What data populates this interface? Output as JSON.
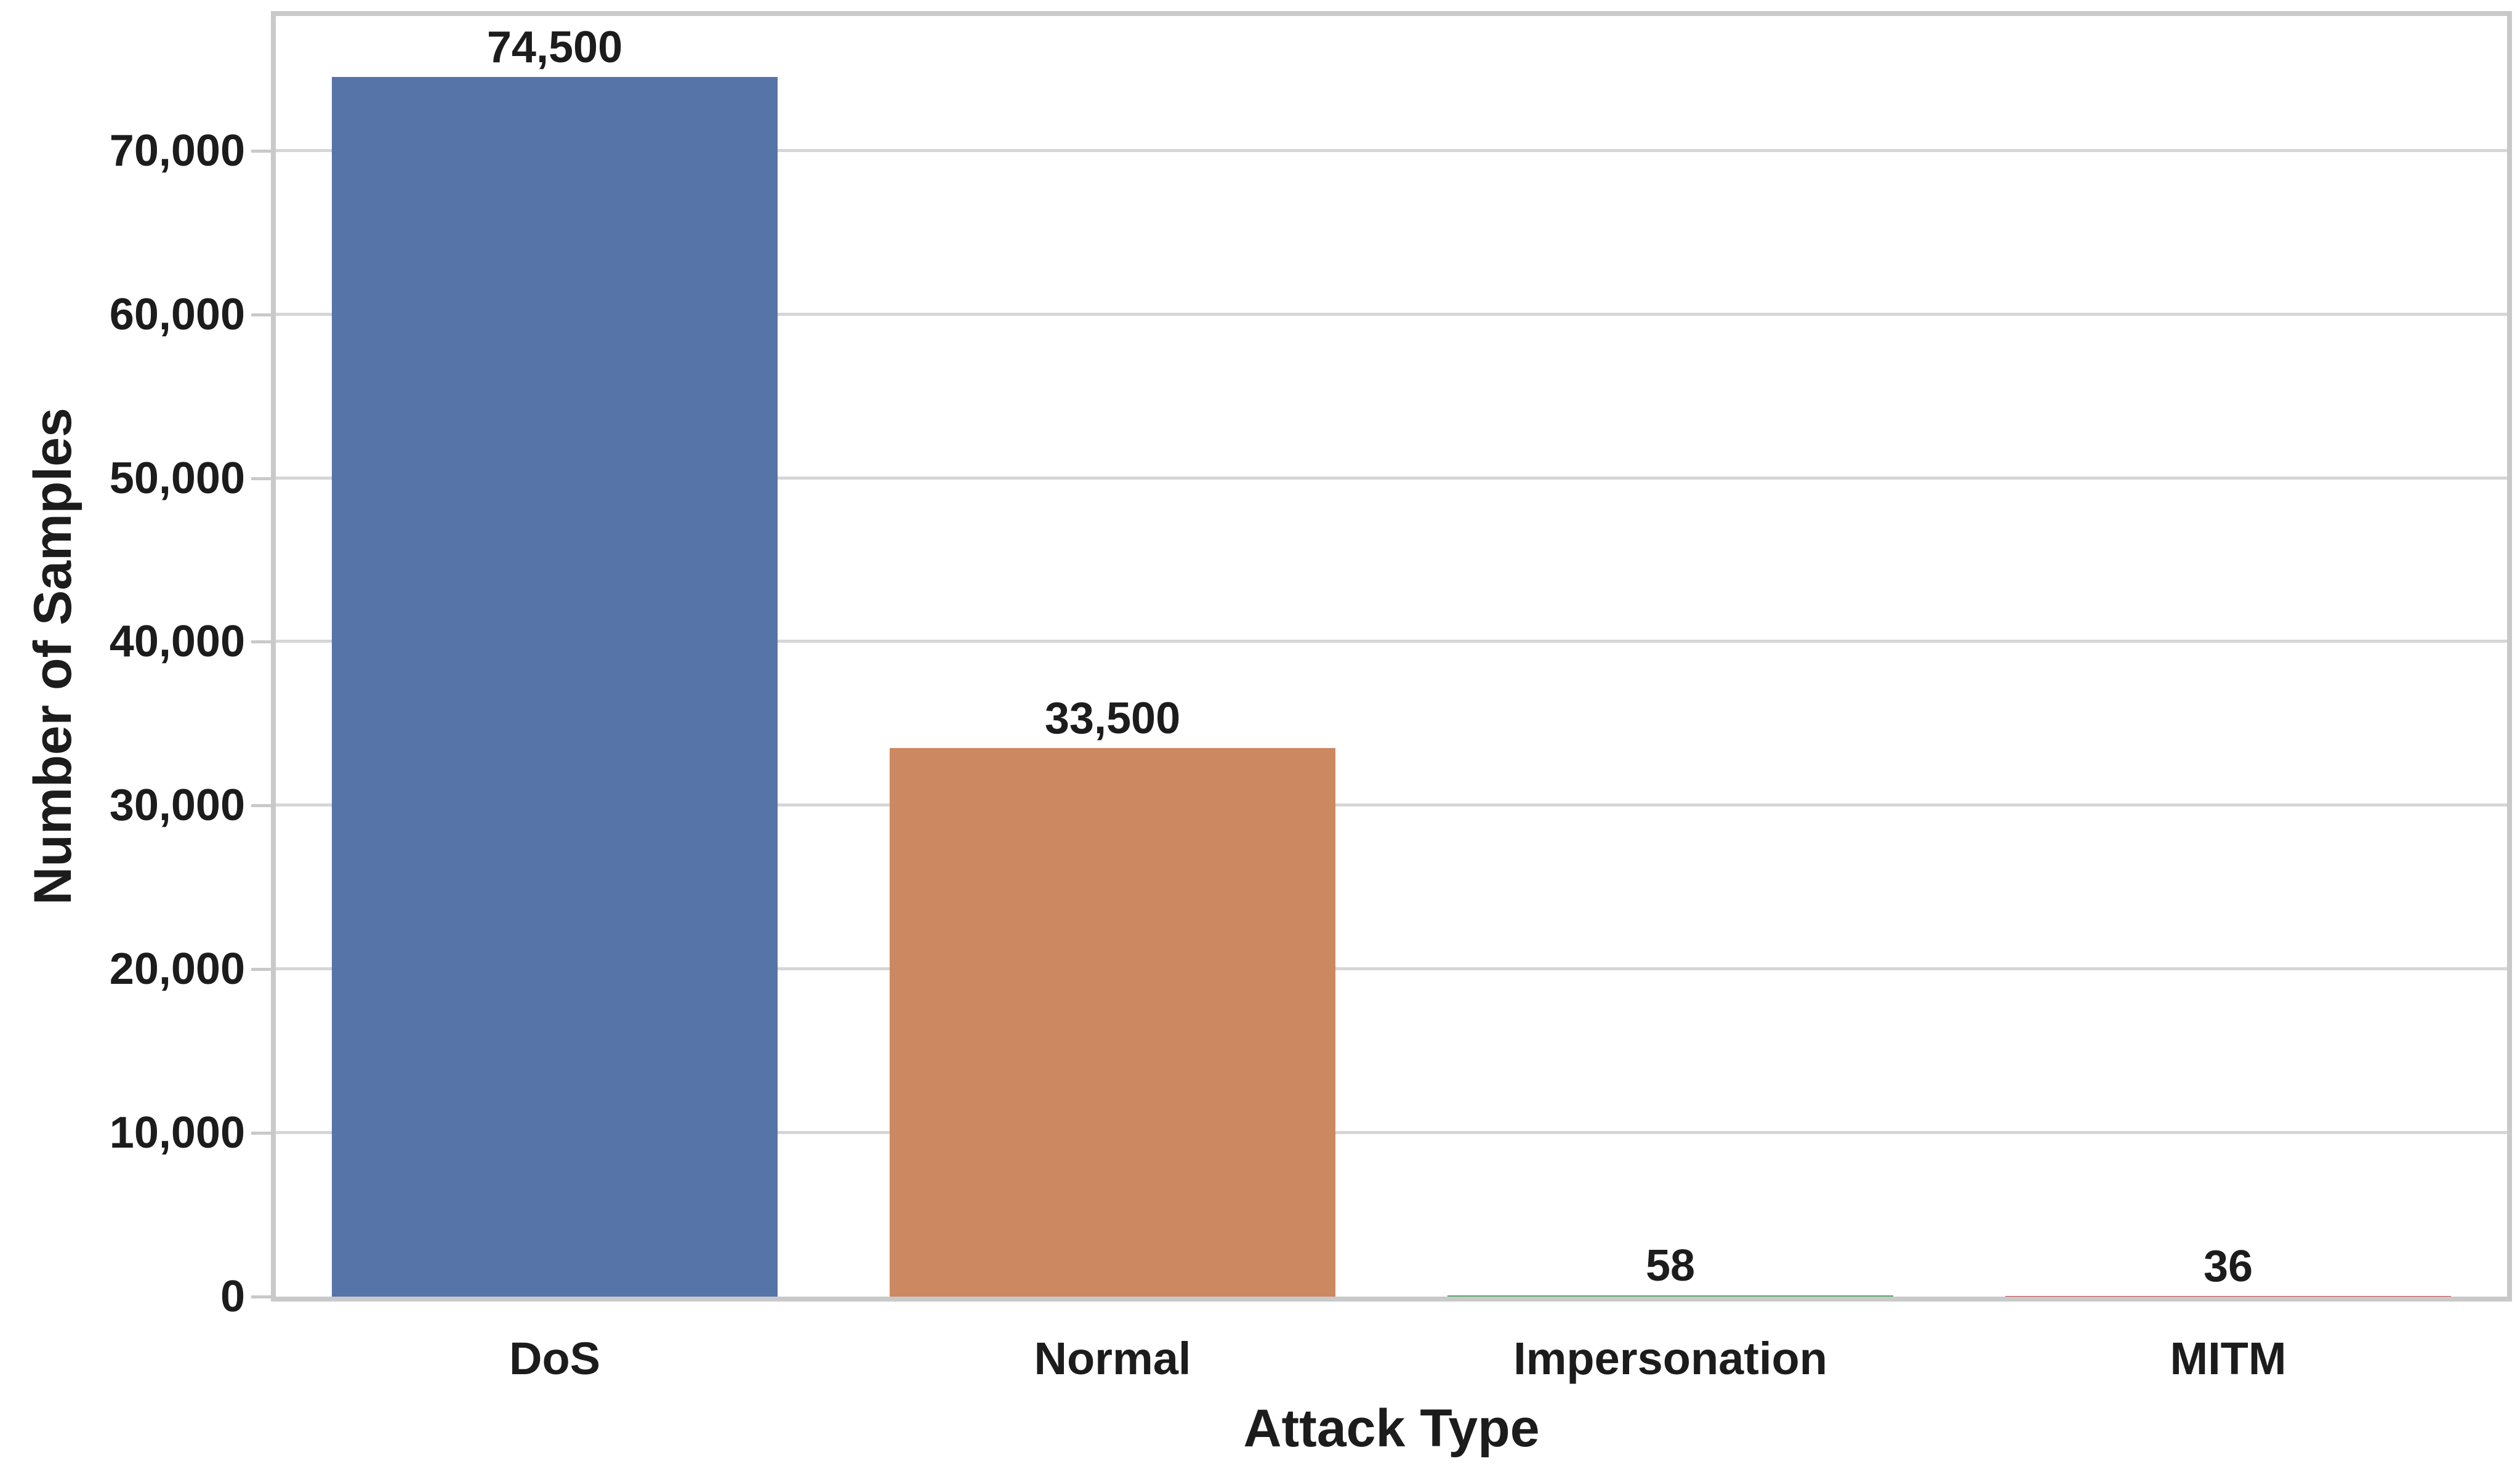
{
  "chart_data": {
    "type": "bar",
    "title": "",
    "xlabel": "Attack Type",
    "ylabel": "Number of Samples",
    "categories": [
      "DoS",
      "Normal",
      "Impersonation",
      "MITM"
    ],
    "values": [
      74500,
      33500,
      58,
      36
    ],
    "value_labels": [
      "74,500",
      "33,500",
      "58",
      "36"
    ],
    "bar_colors": [
      "#5674A8",
      "#CC8861",
      "#55A868",
      "#C44E52"
    ],
    "ylim": [
      0,
      78225
    ],
    "yticks": {
      "values": [
        0,
        10000,
        20000,
        30000,
        40000,
        50000,
        60000,
        70000
      ],
      "labels": [
        "0",
        "10,000",
        "20,000",
        "30,000",
        "40,000",
        "50,000",
        "60,000",
        "70,000"
      ]
    },
    "grid": "horizontal",
    "legend_position": "none",
    "colors": {
      "background": "#ffffff",
      "grid": "#d6d6d6",
      "spine": "#c9c9c9",
      "text": "#1c1c1c"
    }
  }
}
